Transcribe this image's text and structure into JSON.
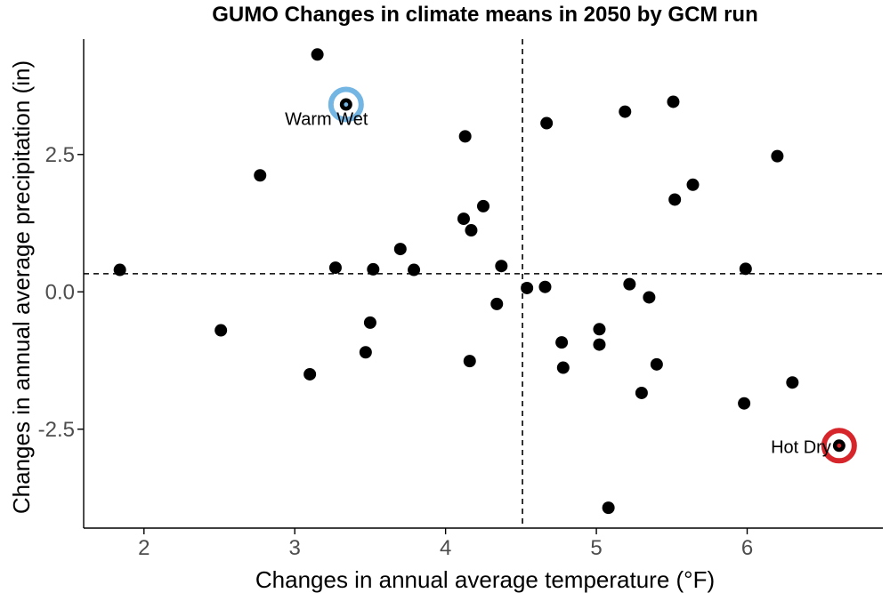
{
  "chart_data": {
    "type": "scatter",
    "title": "GUMO Changes in climate means in 2050 by GCM run",
    "xlabel": "Changes in annual average temperature (°F)",
    "ylabel": "Changes in annual average precipitation (in)",
    "xlim": [
      1.6,
      6.9
    ],
    "ylim": [
      -4.3,
      4.6
    ],
    "xticks": [
      2,
      3,
      4,
      5,
      6
    ],
    "xtick_labels": [
      "2",
      "3",
      "4",
      "5",
      "6"
    ],
    "yticks": [
      -2.5,
      0.0,
      2.5
    ],
    "ytick_labels": [
      "-2.5",
      "0.0",
      "2.5"
    ],
    "grid": false,
    "reference_lines": {
      "x": 4.51,
      "y": 0.33
    },
    "points": [
      {
        "x": 1.84,
        "y": 0.4
      },
      {
        "x": 2.51,
        "y": -0.7
      },
      {
        "x": 2.77,
        "y": 2.12
      },
      {
        "x": 3.1,
        "y": -1.5
      },
      {
        "x": 3.15,
        "y": 4.32
      },
      {
        "x": 3.27,
        "y": 0.44
      },
      {
        "x": 3.47,
        "y": -1.1
      },
      {
        "x": 3.5,
        "y": -0.56
      },
      {
        "x": 3.52,
        "y": 0.41
      },
      {
        "x": 3.7,
        "y": 0.78
      },
      {
        "x": 3.79,
        "y": 0.4
      },
      {
        "x": 4.12,
        "y": 1.33
      },
      {
        "x": 4.13,
        "y": 2.83
      },
      {
        "x": 4.16,
        "y": -1.26
      },
      {
        "x": 4.17,
        "y": 1.12
      },
      {
        "x": 4.25,
        "y": 1.56
      },
      {
        "x": 4.34,
        "y": -0.22
      },
      {
        "x": 4.37,
        "y": 0.47
      },
      {
        "x": 4.54,
        "y": 0.07
      },
      {
        "x": 4.66,
        "y": 0.09
      },
      {
        "x": 4.67,
        "y": 3.07
      },
      {
        "x": 4.77,
        "y": -0.92
      },
      {
        "x": 4.78,
        "y": -1.38
      },
      {
        "x": 5.02,
        "y": -0.68
      },
      {
        "x": 5.02,
        "y": -0.96
      },
      {
        "x": 5.08,
        "y": -3.93
      },
      {
        "x": 5.19,
        "y": 3.28
      },
      {
        "x": 5.22,
        "y": 0.14
      },
      {
        "x": 5.3,
        "y": -1.84
      },
      {
        "x": 5.35,
        "y": -0.1
      },
      {
        "x": 5.4,
        "y": -1.32
      },
      {
        "x": 5.51,
        "y": 3.46
      },
      {
        "x": 5.52,
        "y": 1.68
      },
      {
        "x": 5.64,
        "y": 1.95
      },
      {
        "x": 5.98,
        "y": -2.03
      },
      {
        "x": 5.99,
        "y": 0.42
      },
      {
        "x": 6.2,
        "y": 2.47
      },
      {
        "x": 6.3,
        "y": -1.65
      }
    ],
    "highlighted_points": [
      {
        "label": "Warm Wet",
        "x": 3.34,
        "y": 3.41,
        "ring_color": "#74b6e3",
        "center_color": "#74b6e3"
      },
      {
        "label": "Hot Dry",
        "x": 6.61,
        "y": -2.8,
        "ring_color": "#d7262b",
        "center_color": "#d7262b"
      }
    ],
    "colors": {
      "points": "#000000",
      "axis": "#000000",
      "tick_label": "#4d4d4d",
      "reference_line": "#000000"
    }
  }
}
